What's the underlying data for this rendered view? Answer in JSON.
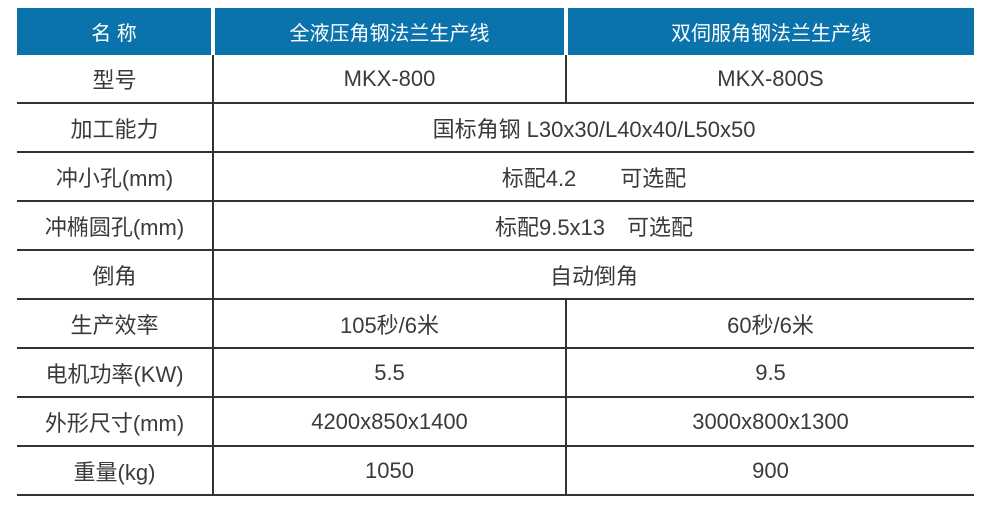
{
  "colors": {
    "header_bg": "#0a73ab",
    "header_text": "#ffffff",
    "body_text": "#3a3a3a",
    "grid_line": "#333333"
  },
  "table": {
    "header": {
      "col1": "名 称",
      "col2": "全液压角钢法兰生产线",
      "col3": "双伺服角钢法兰生产线"
    },
    "rows": [
      {
        "label": "型号",
        "col2": "MKX-800",
        "col3": "MKX-800S"
      },
      {
        "label": "加工能力",
        "value": "国标角钢 L30x30/L40x40/L50x50"
      },
      {
        "label": "冲小孔(mm)",
        "value": "标配4.2　　可选配"
      },
      {
        "label": "冲椭圆孔(mm)",
        "value": "标配9.5x13　可选配"
      },
      {
        "label": "倒角",
        "value": "自动倒角"
      },
      {
        "label": "生产效率",
        "col2": "105秒/6米",
        "col3": "60秒/6米"
      },
      {
        "label": "电机功率(KW)",
        "col2": "5.5",
        "col3": "9.5"
      },
      {
        "label": "外形尺寸(mm)",
        "col2": "4200x850x1400",
        "col3": "3000x800x1300"
      },
      {
        "label": "重量(kg)",
        "col2": "1050",
        "col3": "900"
      }
    ]
  }
}
